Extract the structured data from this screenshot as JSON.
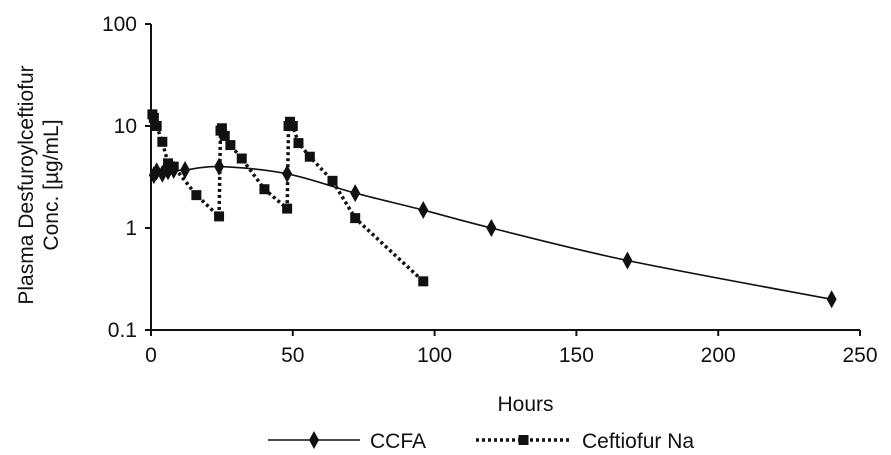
{
  "chart_data": {
    "type": "line",
    "title": "",
    "xlabel": "Hours",
    "ylabel_lines": [
      "Plasma Desfuroylceftiofur",
      "Conc. [µg/mL]"
    ],
    "x_scale": "linear",
    "y_scale": "log",
    "xlim": [
      0,
      250
    ],
    "ylim": [
      0.1,
      100
    ],
    "x_ticks": [
      0,
      50,
      100,
      150,
      200,
      250
    ],
    "y_ticks": [
      0.1,
      1,
      10,
      100
    ],
    "x_tick_labels": [
      "0",
      "50",
      "100",
      "150",
      "200",
      "250"
    ],
    "y_tick_labels": [
      "0.1",
      "1",
      "10",
      "100"
    ],
    "grid": false,
    "legend_position": "bottom",
    "series": [
      {
        "name": "CCFA",
        "marker": "diamond",
        "line_style": "solid",
        "smooth": true,
        "color": "#111111",
        "x": [
          1,
          2,
          4,
          6,
          8,
          12,
          24,
          48,
          72,
          96,
          120,
          168,
          240
        ],
        "y": [
          3.3,
          3.6,
          3.4,
          3.6,
          3.7,
          3.7,
          4.0,
          3.4,
          2.2,
          1.5,
          1.0,
          0.48,
          0.2
        ]
      },
      {
        "name": "Ceftiofur Na",
        "marker": "square",
        "line_style": "dotted",
        "smooth": false,
        "color": "#111111",
        "x": [
          0.5,
          1,
          2,
          4,
          6,
          8,
          16,
          24,
          24.5,
          25,
          26,
          28,
          32,
          40,
          48,
          48.5,
          49,
          50,
          52,
          56,
          64,
          72,
          96
        ],
        "y": [
          13,
          12,
          10,
          7,
          4.3,
          4,
          2.1,
          1.3,
          9,
          9.5,
          8,
          6.5,
          4.8,
          2.4,
          1.55,
          10,
          11,
          10,
          6.8,
          5.0,
          2.9,
          1.25,
          0.3
        ]
      }
    ]
  }
}
